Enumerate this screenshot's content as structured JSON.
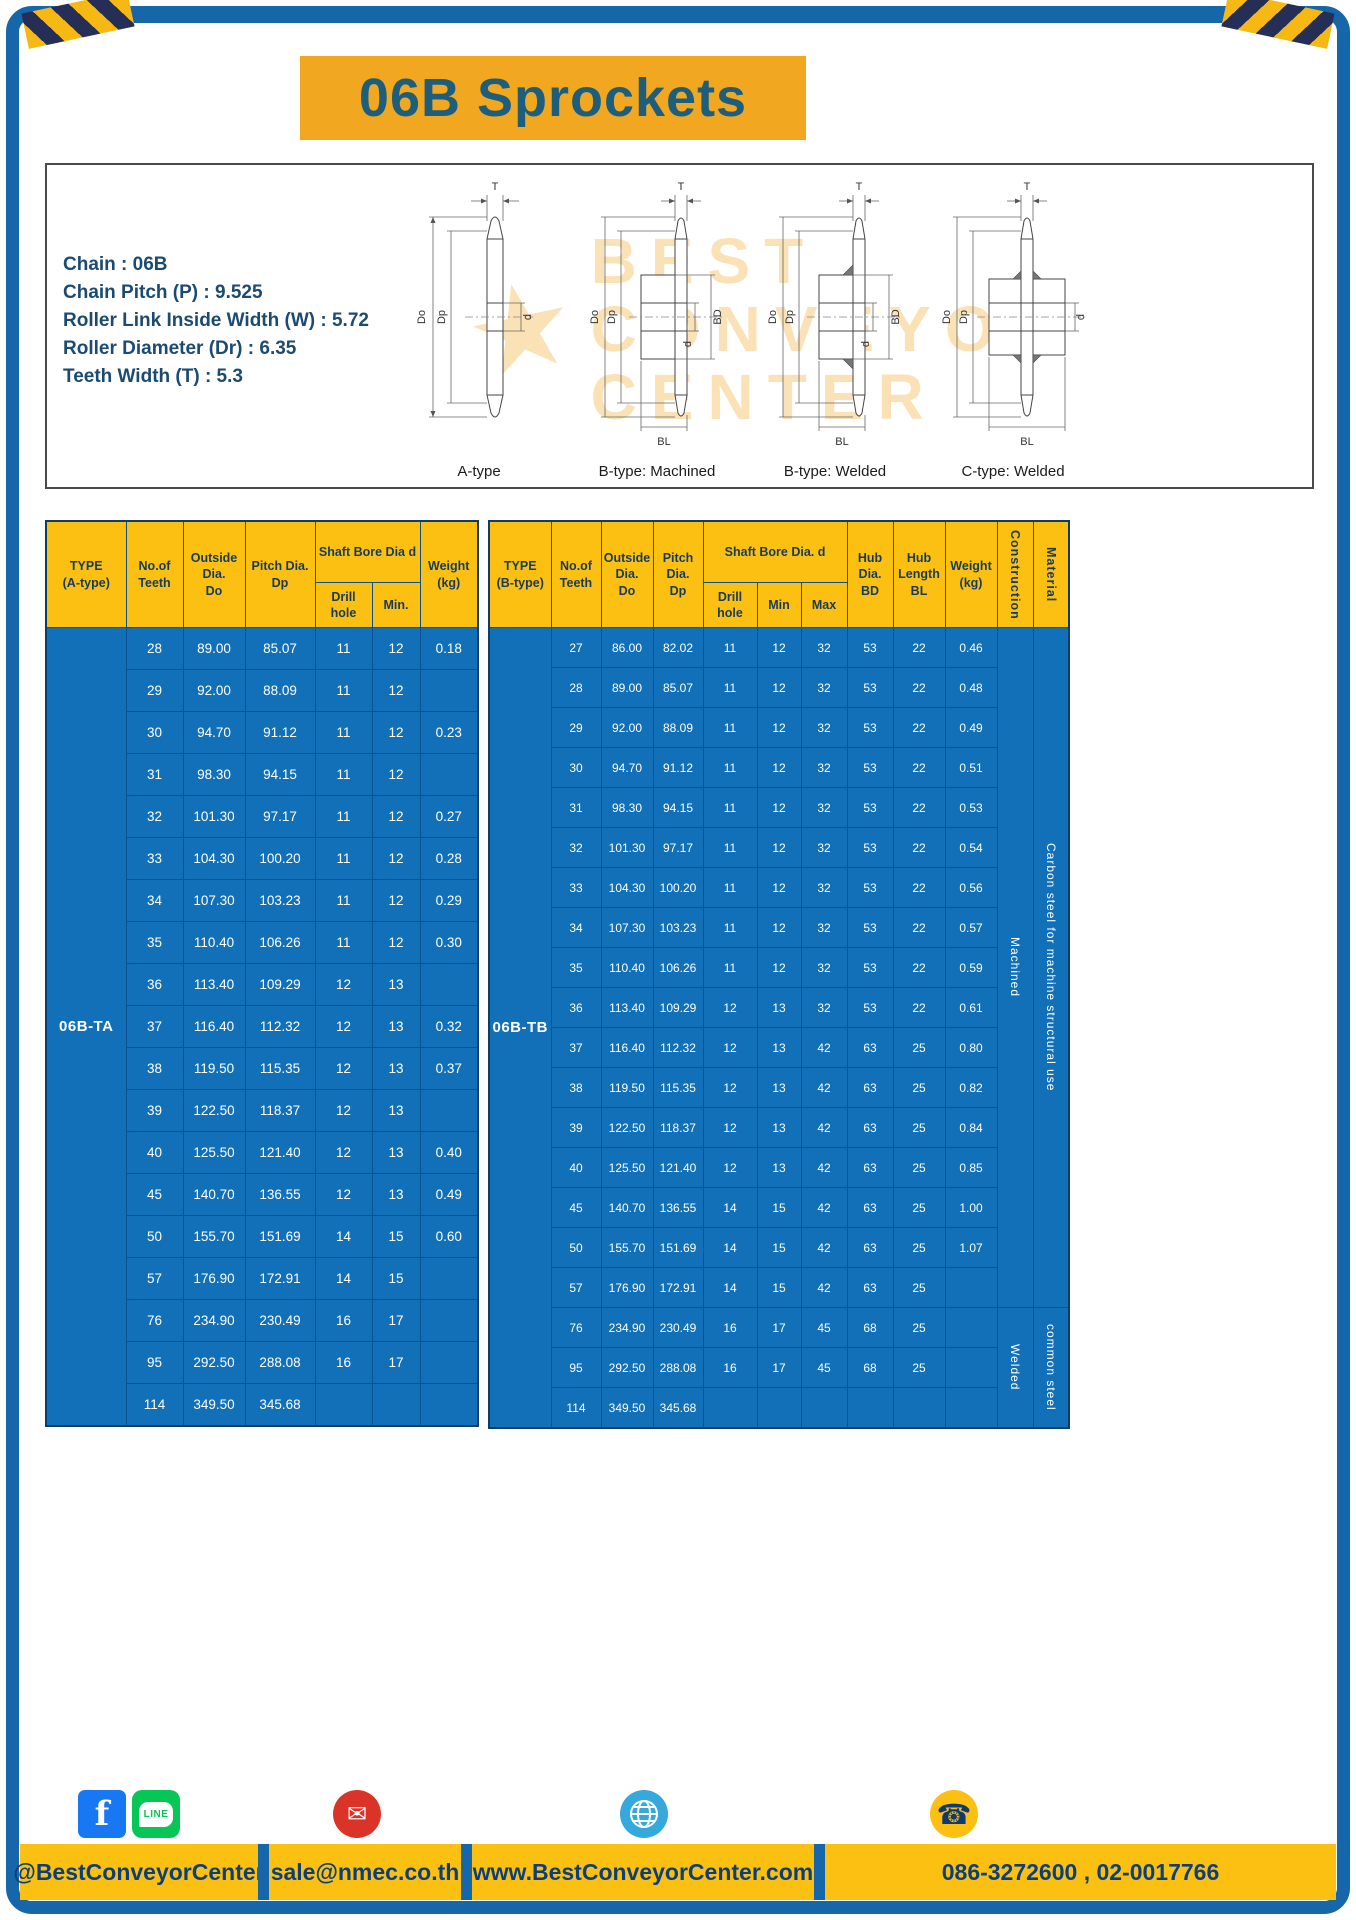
{
  "page": {
    "title": "06B Sprockets"
  },
  "specs": {
    "lines": [
      "Chain : 06B",
      "Chain Pitch (P) : 9.525",
      "Roller Link Inside Width (W) : 5.72",
      "Roller Diameter (Dr) : 6.35",
      "Teeth Width (T) : 5.3"
    ]
  },
  "diagrams": {
    "labels": [
      "A-type",
      "B-type: Machined",
      "B-type: Welded",
      "C-type: Welded"
    ],
    "dims": {
      "t": "T",
      "do": "Do",
      "dp": "Dp",
      "d": "d",
      "bd": "BD",
      "bl": "BL"
    }
  },
  "watermark": {
    "star": "★",
    "lines": [
      "BEST",
      "CONVEYOR",
      "CENTER"
    ]
  },
  "table_a": {
    "header": {
      "type": "TYPE\n(A-type)",
      "teeth": "No.of\nTeeth",
      "outside": "Outside\nDia.\nDo",
      "pitch": "Pitch Dia.\nDp",
      "shaft_bore": "Shaft Bore Dia d",
      "drill": "Drill hole",
      "min": "Min.",
      "weight": "Weight\n(kg)"
    },
    "type_value": "06B-TA",
    "rows": [
      [
        "28",
        "89.00",
        "85.07",
        "11",
        "12",
        "0.18"
      ],
      [
        "29",
        "92.00",
        "88.09",
        "11",
        "12",
        ""
      ],
      [
        "30",
        "94.70",
        "91.12",
        "11",
        "12",
        "0.23"
      ],
      [
        "31",
        "98.30",
        "94.15",
        "11",
        "12",
        ""
      ],
      [
        "32",
        "101.30",
        "97.17",
        "11",
        "12",
        "0.27"
      ],
      [
        "33",
        "104.30",
        "100.20",
        "11",
        "12",
        "0.28"
      ],
      [
        "34",
        "107.30",
        "103.23",
        "11",
        "12",
        "0.29"
      ],
      [
        "35",
        "110.40",
        "106.26",
        "11",
        "12",
        "0.30"
      ],
      [
        "36",
        "113.40",
        "109.29",
        "12",
        "13",
        ""
      ],
      [
        "37",
        "116.40",
        "112.32",
        "12",
        "13",
        "0.32"
      ],
      [
        "38",
        "119.50",
        "115.35",
        "12",
        "13",
        "0.37"
      ],
      [
        "39",
        "122.50",
        "118.37",
        "12",
        "13",
        ""
      ],
      [
        "40",
        "125.50",
        "121.40",
        "12",
        "13",
        "0.40"
      ],
      [
        "45",
        "140.70",
        "136.55",
        "12",
        "13",
        "0.49"
      ],
      [
        "50",
        "155.70",
        "151.69",
        "14",
        "15",
        "0.60"
      ],
      [
        "57",
        "176.90",
        "172.91",
        "14",
        "15",
        ""
      ],
      [
        "76",
        "234.90",
        "230.49",
        "16",
        "17",
        ""
      ],
      [
        "95",
        "292.50",
        "288.08",
        "16",
        "17",
        ""
      ],
      [
        "114",
        "349.50",
        "345.68",
        "",
        "",
        ""
      ]
    ]
  },
  "table_b": {
    "header": {
      "type": "TYPE\n(B-type)",
      "teeth": "No.of\nTeeth",
      "outside": "Outside\nDia.\nDo",
      "pitch": "Pitch\nDia.\nDp",
      "shaft_bore": "Shaft Bore Dia. d",
      "drill": "Drill hole",
      "min": "Min",
      "max": "Max",
      "hub_dia": "Hub\nDia.\nBD",
      "hub_len": "Hub\nLength\nBL",
      "weight": "Weight\n(kg)",
      "construction": "Construction",
      "material": "Material"
    },
    "type_value": "06B-TB",
    "rows": [
      [
        "27",
        "86.00",
        "82.02",
        "11",
        "12",
        "32",
        "53",
        "22",
        "0.46"
      ],
      [
        "28",
        "89.00",
        "85.07",
        "11",
        "12",
        "32",
        "53",
        "22",
        "0.48"
      ],
      [
        "29",
        "92.00",
        "88.09",
        "11",
        "12",
        "32",
        "53",
        "22",
        "0.49"
      ],
      [
        "30",
        "94.70",
        "91.12",
        "11",
        "12",
        "32",
        "53",
        "22",
        "0.51"
      ],
      [
        "31",
        "98.30",
        "94.15",
        "11",
        "12",
        "32",
        "53",
        "22",
        "0.53"
      ],
      [
        "32",
        "101.30",
        "97.17",
        "11",
        "12",
        "32",
        "53",
        "22",
        "0.54"
      ],
      [
        "33",
        "104.30",
        "100.20",
        "11",
        "12",
        "32",
        "53",
        "22",
        "0.56"
      ],
      [
        "34",
        "107.30",
        "103.23",
        "11",
        "12",
        "32",
        "53",
        "22",
        "0.57"
      ],
      [
        "35",
        "110.40",
        "106.26",
        "11",
        "12",
        "32",
        "53",
        "22",
        "0.59"
      ],
      [
        "36",
        "113.40",
        "109.29",
        "12",
        "13",
        "32",
        "53",
        "22",
        "0.61"
      ],
      [
        "37",
        "116.40",
        "112.32",
        "12",
        "13",
        "42",
        "63",
        "25",
        "0.80"
      ],
      [
        "38",
        "119.50",
        "115.35",
        "12",
        "13",
        "42",
        "63",
        "25",
        "0.82"
      ],
      [
        "39",
        "122.50",
        "118.37",
        "12",
        "13",
        "42",
        "63",
        "25",
        "0.84"
      ],
      [
        "40",
        "125.50",
        "121.40",
        "12",
        "13",
        "42",
        "63",
        "25",
        "0.85"
      ],
      [
        "45",
        "140.70",
        "136.55",
        "14",
        "15",
        "42",
        "63",
        "25",
        "1.00"
      ],
      [
        "50",
        "155.70",
        "151.69",
        "14",
        "15",
        "42",
        "63",
        "25",
        "1.07"
      ],
      [
        "57",
        "176.90",
        "172.91",
        "14",
        "15",
        "42",
        "63",
        "25",
        ""
      ],
      [
        "76",
        "234.90",
        "230.49",
        "16",
        "17",
        "45",
        "68",
        "25",
        ""
      ],
      [
        "95",
        "292.50",
        "288.08",
        "16",
        "17",
        "45",
        "68",
        "25",
        ""
      ],
      [
        "114",
        "349.50",
        "345.68",
        "",
        "",
        "",
        "",
        "",
        ""
      ]
    ],
    "construction_segments": [
      {
        "label": "Machined",
        "rows": 17
      },
      {
        "label": "Welded",
        "rows": 3
      }
    ],
    "material_segments": [
      {
        "label": "Carbon steel for machine structural use",
        "rows": 17
      },
      {
        "label": "common steel",
        "rows": 3
      }
    ]
  },
  "footer": {
    "icons": {
      "facebook_letter": "f",
      "line_text": "LINE",
      "mail_glyph": "✉",
      "phone_glyph": "☎"
    },
    "sections": [
      {
        "label": "@BestConveyorCenter"
      },
      {
        "label": "sale@nmec.co.th"
      },
      {
        "label": "www.BestConveyorCenter.com"
      },
      {
        "label": "086-3272600 , 02-0017766"
      }
    ]
  },
  "colors": {
    "accent_yellow": "#fbc011",
    "title_orange": "#f2a720",
    "brand_blue": "#1567a9",
    "table_blue": "#1170b8",
    "navy_text": "#173a5e",
    "title_teal": "#1c5e7c"
  }
}
